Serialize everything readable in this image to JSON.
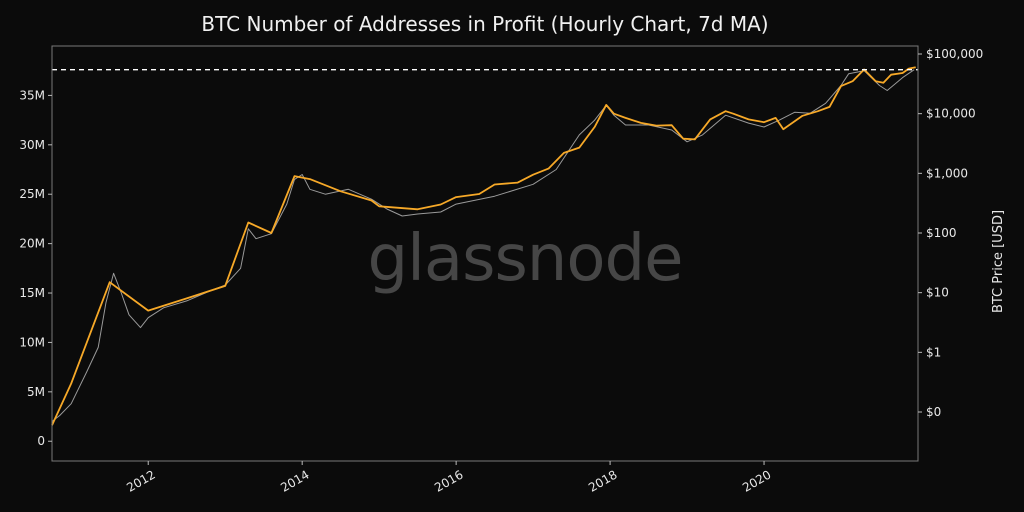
{
  "chart_data": {
    "type": "line",
    "title": "BTC Number of Addresses in Profit (Hourly Chart, 7d MA)",
    "watermark": "glassnode",
    "x_axis": {
      "type": "time",
      "range": [
        2010.75,
        2022.0
      ],
      "tick_labels": [
        "2012",
        "2014",
        "2016",
        "2018",
        "2020"
      ],
      "tick_values": [
        2012,
        2014,
        2016,
        2018,
        2020
      ]
    },
    "y_axis_left": {
      "label": "",
      "range": [
        -2000000,
        40000000
      ],
      "tick_labels": [
        "0",
        "5M",
        "10M",
        "15M",
        "20M",
        "25M",
        "30M",
        "35M"
      ],
      "tick_values": [
        0,
        5000000,
        10000000,
        15000000,
        20000000,
        25000000,
        30000000,
        35000000
      ]
    },
    "y_axis_right": {
      "label": "BTC Price [USD]",
      "scale": "log",
      "tick_labels": [
        "$0",
        "$1",
        "$10",
        "$100",
        "$1,000",
        "$10,000",
        "$100,000"
      ],
      "tick_values": [
        0.1,
        1,
        10,
        100,
        1000,
        10000,
        100000
      ]
    },
    "reference_line": {
      "value": 37600000,
      "style": "dashed",
      "color": "#ffffff"
    },
    "colors": {
      "addresses": "#9a9a9a",
      "price": "#f7a928",
      "background": "#0b0b0b"
    },
    "series": [
      {
        "axis": "left",
        "color": "#9a9a9a",
        "x": [
          2010.75,
          2010.85,
          2011.0,
          2011.2,
          2011.35,
          2011.45,
          2011.55,
          2011.65,
          2011.75,
          2011.9,
          2012.0,
          2012.2,
          2012.5,
          2012.8,
          2013.0,
          2013.2,
          2013.3,
          2013.4,
          2013.6,
          2013.8,
          2013.9,
          2014.0,
          2014.1,
          2014.3,
          2014.6,
          2014.9,
          2015.1,
          2015.3,
          2015.5,
          2015.8,
          2016.0,
          2016.5,
          2017.0,
          2017.3,
          2017.6,
          2017.8,
          2017.95,
          2018.05,
          2018.2,
          2018.5,
          2018.8,
          2019.0,
          2019.2,
          2019.5,
          2019.8,
          2020.0,
          2020.2,
          2020.4,
          2020.6,
          2020.8,
          2021.0,
          2021.1,
          2021.3,
          2021.5,
          2021.6,
          2021.8,
          2021.95
        ],
        "y": [
          2000000,
          2600000,
          3800000,
          7000000,
          9500000,
          14000000,
          17000000,
          15000000,
          12800000,
          11500000,
          12500000,
          13500000,
          14200000,
          15200000,
          15800000,
          17500000,
          21500000,
          20500000,
          21000000,
          24000000,
          26500000,
          27000000,
          25500000,
          25000000,
          25500000,
          24500000,
          23500000,
          22800000,
          23000000,
          23200000,
          24000000,
          24800000,
          26000000,
          27500000,
          31000000,
          32500000,
          34000000,
          33000000,
          32000000,
          32000000,
          31500000,
          30300000,
          31000000,
          33000000,
          32200000,
          31800000,
          32500000,
          33300000,
          33200000,
          34200000,
          36000000,
          37200000,
          37500000,
          36000000,
          35500000,
          36800000,
          37600000
        ]
      },
      {
        "axis": "right",
        "color": "#f7a928",
        "x": [
          2010.75,
          2011.0,
          2011.5,
          2012.0,
          2012.5,
          2013.0,
          2013.3,
          2013.6,
          2013.9,
          2014.1,
          2014.5,
          2014.9,
          2015.0,
          2015.5,
          2015.8,
          2016.0,
          2016.3,
          2016.5,
          2016.8,
          2017.0,
          2017.2,
          2017.4,
          2017.6,
          2017.8,
          2017.95,
          2018.05,
          2018.2,
          2018.4,
          2018.6,
          2018.8,
          2018.95,
          2019.1,
          2019.3,
          2019.5,
          2019.6,
          2019.8,
          2020.0,
          2020.15,
          2020.25,
          2020.5,
          2020.7,
          2020.85,
          2021.0,
          2021.15,
          2021.3,
          2021.45,
          2021.55,
          2021.65,
          2021.8,
          2021.88,
          2021.97
        ],
        "y": [
          0.06,
          0.3,
          15,
          5,
          8,
          13,
          150,
          100,
          900,
          800,
          500,
          350,
          280,
          250,
          300,
          400,
          450,
          650,
          700,
          950,
          1200,
          2200,
          2700,
          6000,
          14000,
          10000,
          8500,
          7000,
          6300,
          6400,
          3800,
          3700,
          8000,
          11000,
          10000,
          8000,
          7200,
          8500,
          5500,
          9200,
          11000,
          13000,
          29000,
          35000,
          55000,
          35000,
          33000,
          45000,
          48000,
          57000,
          60000
        ]
      }
    ]
  }
}
